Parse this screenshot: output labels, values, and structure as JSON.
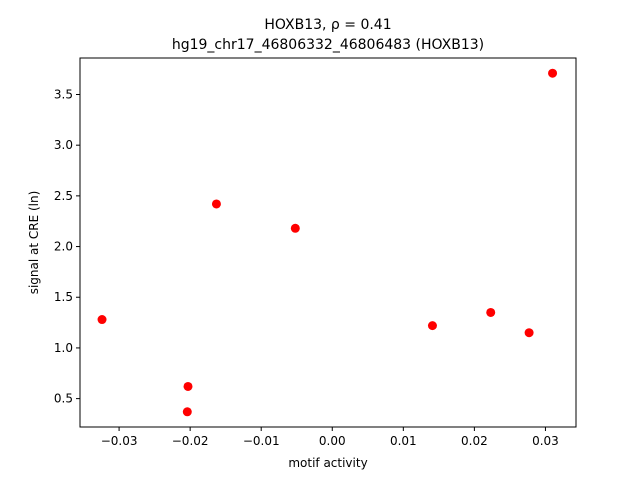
{
  "chart_data": {
    "type": "scatter",
    "title_line1": "HOXB13, ρ = 0.41",
    "title_line2": "hg19_chr17_46806332_46806483 (HOXB13)",
    "xlabel": "motif activity",
    "ylabel": "signal at CRE (ln)",
    "xlim": [
      -0.0355,
      0.0343
    ],
    "ylim": [
      0.22,
      3.86
    ],
    "xticks": [
      -0.03,
      -0.02,
      -0.01,
      0.0,
      0.01,
      0.02,
      0.03
    ],
    "xtick_labels": [
      "−0.03",
      "−0.02",
      "−0.01",
      "0.00",
      "0.01",
      "0.02",
      "0.03"
    ],
    "yticks": [
      0.5,
      1.0,
      1.5,
      2.0,
      2.5,
      3.0,
      3.5
    ],
    "ytick_labels": [
      "0.5",
      "1.0",
      "1.5",
      "2.0",
      "2.5",
      "3.0",
      "3.5"
    ],
    "grid": false,
    "marker_color": "#ff0000",
    "x": [
      -0.0324,
      -0.0203,
      -0.0204,
      -0.0163,
      -0.0052,
      0.0141,
      0.0223,
      0.0277,
      0.031
    ],
    "y": [
      1.28,
      0.62,
      0.37,
      2.42,
      2.18,
      1.22,
      1.35,
      1.15,
      3.71
    ]
  }
}
